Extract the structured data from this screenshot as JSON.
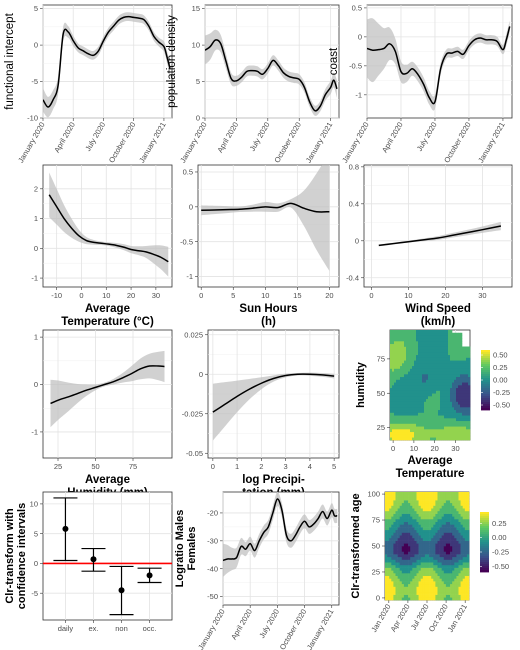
{
  "chart_data": [
    {
      "id": "p1",
      "type": "line",
      "ylabel": "functional intercept",
      "xlabel": "",
      "ylim": [
        -10,
        5.5
      ],
      "xlim": [
        0,
        12.8
      ],
      "yticks": [
        -10,
        -5,
        0,
        5
      ],
      "xticks": [
        {
          "v": 0,
          "t": "January 2020"
        },
        {
          "v": 3,
          "t": "April 2020"
        },
        {
          "v": 6,
          "t": "July 2020"
        },
        {
          "v": 9,
          "t": "October 2020"
        },
        {
          "v": 12,
          "t": "January 2021"
        }
      ],
      "x": [
        0,
        0.5,
        1,
        1.5,
        2,
        2.5,
        3,
        3.5,
        4,
        4.5,
        5,
        5.5,
        6,
        6.5,
        7,
        7.5,
        8,
        8.5,
        9,
        9.5,
        10,
        10.5,
        11,
        11.5,
        12,
        12.3,
        12.6
      ],
      "y": [
        -7.5,
        -8.5,
        -7.5,
        -5.5,
        1.5,
        1.8,
        0.6,
        -0.4,
        -0.8,
        -1.2,
        -1.4,
        -0.8,
        0.6,
        1.8,
        2.6,
        3.4,
        3.8,
        3.9,
        3.8,
        3.7,
        3.5,
        2.6,
        1.2,
        0.4,
        -0.2,
        -1.6,
        -3.2
      ],
      "band": [
        1.6,
        1.4,
        1.3,
        1.2,
        1.0,
        0.8,
        0.7,
        0.6,
        0.6,
        0.6,
        0.6,
        0.6,
        0.6,
        0.6,
        0.6,
        0.6,
        0.6,
        0.6,
        0.6,
        0.6,
        0.6,
        0.6,
        0.6,
        0.6,
        0.7,
        0.8,
        0.9
      ]
    },
    {
      "id": "p2",
      "type": "line",
      "ylabel": "population density",
      "xlabel": "",
      "ylim": [
        0,
        15.5
      ],
      "xlim": [
        0,
        12.8
      ],
      "yticks": [
        0,
        5,
        10,
        15
      ],
      "xticks": [
        {
          "v": 0,
          "t": "January 2020"
        },
        {
          "v": 3,
          "t": "April 2020"
        },
        {
          "v": 6,
          "t": "July 2020"
        },
        {
          "v": 9,
          "t": "October 2020"
        },
        {
          "v": 12,
          "t": "January 2021"
        }
      ],
      "x": [
        0,
        0.5,
        1,
        1.5,
        2,
        2.5,
        3,
        3.5,
        4,
        4.5,
        5,
        5.5,
        6,
        6.5,
        7,
        7.5,
        8,
        8.5,
        9,
        9.5,
        10,
        10.5,
        11,
        11.5,
        12,
        12.3,
        12.6
      ],
      "y": [
        9.3,
        9.8,
        10.7,
        10.2,
        7.8,
        5.4,
        5.1,
        5.6,
        6.4,
        6.5,
        6.4,
        6.0,
        6.8,
        7.9,
        7.2,
        6.2,
        5.7,
        5.5,
        5.3,
        4.2,
        2.2,
        1.0,
        1.6,
        3.2,
        4.2,
        5.2,
        4.0
      ],
      "band": [
        2.0,
        1.8,
        1.4,
        1.2,
        1.0,
        0.8,
        0.7,
        0.7,
        0.7,
        0.7,
        0.7,
        0.7,
        0.7,
        0.7,
        0.7,
        0.7,
        0.7,
        0.7,
        0.7,
        0.7,
        0.7,
        0.7,
        0.7,
        0.8,
        0.9,
        1.0,
        1.2
      ]
    },
    {
      "id": "p3",
      "type": "line",
      "ylabel": "coast",
      "xlabel": "",
      "ylim": [
        -1.4,
        0.55
      ],
      "xlim": [
        0,
        12.8
      ],
      "yticks": [
        -1.0,
        -0.5,
        0.0,
        0.5
      ],
      "xticks": [
        {
          "v": 0,
          "t": "January 2020"
        },
        {
          "v": 3,
          "t": "April 2020"
        },
        {
          "v": 6,
          "t": "July 2020"
        },
        {
          "v": 9,
          "t": "October 2020"
        },
        {
          "v": 12,
          "t": "January 2021"
        }
      ],
      "x": [
        0,
        0.5,
        1,
        1.5,
        2,
        2.5,
        3,
        3.5,
        4,
        4.5,
        5,
        5.5,
        6,
        6.5,
        7,
        7.5,
        8,
        8.5,
        9,
        9.5,
        10,
        10.5,
        11,
        11.5,
        12,
        12.3,
        12.6
      ],
      "y": [
        -0.2,
        -0.23,
        -0.22,
        -0.2,
        -0.12,
        -0.25,
        -0.6,
        -0.63,
        -0.55,
        -0.65,
        -0.82,
        -1.05,
        -1.12,
        -0.55,
        -0.3,
        -0.28,
        -0.25,
        -0.3,
        -0.15,
        -0.05,
        -0.02,
        -0.05,
        -0.05,
        -0.08,
        -0.22,
        -0.05,
        0.18
      ],
      "band": [
        0.5,
        0.55,
        0.45,
        0.35,
        0.28,
        0.22,
        0.18,
        0.15,
        0.12,
        0.12,
        0.12,
        0.12,
        0.12,
        0.1,
        0.08,
        0.08,
        0.08,
        0.08,
        0.08,
        0.08,
        0.08,
        0.08,
        0.08,
        0.08,
        0.08,
        0.1,
        0.1
      ]
    },
    {
      "id": "p4",
      "type": "line",
      "ylabel": "",
      "xlabel": "Average\nTemperature (°C)",
      "ylim": [
        -1.3,
        2.8
      ],
      "xlim": [
        -15.5,
        36.5
      ],
      "yticks": [
        -1,
        0,
        1,
        2
      ],
      "xticks": [
        {
          "v": -10,
          "t": "-10"
        },
        {
          "v": 0,
          "t": "0"
        },
        {
          "v": 10,
          "t": "10"
        },
        {
          "v": 20,
          "t": "20"
        },
        {
          "v": 30,
          "t": "30"
        }
      ],
      "x": [
        -13,
        -10,
        -7,
        -4,
        -1,
        2,
        5,
        8,
        11,
        14,
        17,
        20,
        23,
        26,
        29,
        32,
        35
      ],
      "y": [
        1.8,
        1.4,
        1.0,
        0.68,
        0.42,
        0.26,
        0.2,
        0.17,
        0.14,
        0.1,
        0.04,
        -0.04,
        -0.08,
        -0.12,
        -0.2,
        -0.3,
        -0.45
      ],
      "band": [
        0.75,
        0.6,
        0.45,
        0.32,
        0.2,
        0.12,
        0.08,
        0.06,
        0.06,
        0.08,
        0.1,
        0.12,
        0.15,
        0.2,
        0.3,
        0.4,
        0.5
      ]
    },
    {
      "id": "p5",
      "type": "line",
      "ylabel": "",
      "xlabel": "Sun Hours\n(h)",
      "ylim": [
        -1.15,
        0.6
      ],
      "xlim": [
        -0.5,
        21.5
      ],
      "yticks": [
        -1.0,
        -0.5,
        0.0,
        0.5
      ],
      "xticks": [
        {
          "v": 0,
          "t": "0"
        },
        {
          "v": 5,
          "t": "5"
        },
        {
          "v": 10,
          "t": "10"
        },
        {
          "v": 15,
          "t": "15"
        },
        {
          "v": 20,
          "t": "20"
        }
      ],
      "x": [
        0,
        2,
        4,
        6,
        8,
        10,
        12,
        14,
        16,
        18,
        20
      ],
      "y": [
        -0.05,
        -0.045,
        -0.04,
        -0.035,
        -0.02,
        0.0,
        -0.01,
        0.05,
        -0.02,
        -0.07,
        -0.07
      ],
      "band": [
        0.07,
        0.06,
        0.05,
        0.04,
        0.05,
        0.07,
        0.06,
        0.06,
        0.25,
        0.55,
        0.85
      ]
    },
    {
      "id": "p6",
      "type": "line",
      "ylabel": "",
      "xlabel": "Wind Speed\n(km/h)",
      "ylim": [
        -0.5,
        0.82
      ],
      "xlim": [
        -2,
        38
      ],
      "yticks": [
        -0.4,
        0.0,
        0.4,
        0.8
      ],
      "xticks": [
        {
          "v": 0,
          "t": "0"
        },
        {
          "v": 10,
          "t": "10"
        },
        {
          "v": 20,
          "t": "20"
        },
        {
          "v": 30,
          "t": "30"
        }
      ],
      "x": [
        2,
        6,
        10,
        14,
        18,
        22,
        26,
        30,
        35
      ],
      "y": [
        -0.05,
        -0.03,
        -0.01,
        0.01,
        0.03,
        0.06,
        0.09,
        0.12,
        0.16
      ],
      "band": [
        0.01,
        0.01,
        0.01,
        0.015,
        0.02,
        0.025,
        0.03,
        0.035,
        0.045
      ]
    },
    {
      "id": "p7",
      "type": "line",
      "ylabel": "",
      "xlabel": "Average\nHumidity (mm)",
      "ylim": [
        -1.55,
        1.15
      ],
      "xlim": [
        15,
        101
      ],
      "yticks": [
        -1,
        0,
        1
      ],
      "xticks": [
        {
          "v": 25,
          "t": "25"
        },
        {
          "v": 50,
          "t": "50"
        },
        {
          "v": 75,
          "t": "75"
        }
      ],
      "x": [
        20,
        26,
        32,
        38,
        44,
        50,
        56,
        62,
        68,
        74,
        80,
        86,
        92,
        96
      ],
      "y": [
        -0.4,
        -0.32,
        -0.26,
        -0.19,
        -0.12,
        -0.06,
        0.0,
        0.06,
        0.14,
        0.23,
        0.33,
        0.39,
        0.39,
        0.38
      ],
      "band": [
        0.5,
        0.4,
        0.3,
        0.2,
        0.12,
        0.06,
        0.04,
        0.06,
        0.1,
        0.16,
        0.22,
        0.26,
        0.3,
        0.33
      ]
    },
    {
      "id": "p8",
      "type": "line",
      "ylabel": "",
      "xlabel": "log Precipi-\ntation (mm)",
      "ylim": [
        -0.053,
        0.028
      ],
      "xlim": [
        -0.2,
        5.2
      ],
      "yticks": [
        -0.05,
        -0.025,
        0.0,
        0.025
      ],
      "xticks": [
        {
          "v": 0,
          "t": "0"
        },
        {
          "v": 1,
          "t": "1"
        },
        {
          "v": 2,
          "t": "2"
        },
        {
          "v": 3,
          "t": "3"
        },
        {
          "v": 4,
          "t": "4"
        },
        {
          "v": 5,
          "t": "5"
        }
      ],
      "x": [
        0,
        0.5,
        1,
        1.5,
        2,
        2.5,
        3,
        3.5,
        4,
        4.5,
        5
      ],
      "y": [
        -0.024,
        -0.019,
        -0.014,
        -0.0095,
        -0.0057,
        -0.0027,
        -0.0008,
        0.0,
        0.0,
        -0.0004,
        -0.0012
      ],
      "band": [
        0.018,
        0.014,
        0.01,
        0.0065,
        0.0038,
        0.002,
        0.0012,
        0.0008,
        0.001,
        0.0012,
        0.0015
      ]
    },
    {
      "id": "p9",
      "type": "heatmap",
      "ylabel": "humidity",
      "xlabel": "Average\nTemperature",
      "xlim": [
        -1.5,
        37
      ],
      "ylim": [
        16,
        96
      ],
      "yticks": [
        25,
        50,
        75
      ],
      "xticks": [
        {
          "v": 0,
          "t": "0"
        },
        {
          "v": 10,
          "t": "10"
        },
        {
          "v": 20,
          "t": "20"
        },
        {
          "v": 30,
          "t": "30"
        }
      ],
      "zlim": [
        -0.6,
        0.6
      ],
      "legend_ticks": [
        "0.50",
        "0.25",
        "0.00",
        "-0.25",
        "-0.50"
      ],
      "legend_values": [
        0.5,
        0.25,
        0,
        -0.25,
        -0.5
      ]
    },
    {
      "id": "p10",
      "type": "scatter",
      "ylabel": "Clr-transform with\nconfidence intervals",
      "xlabel": "",
      "categories": [
        "daily",
        "ex.",
        "non",
        "occ."
      ],
      "values": [
        5.8,
        0.7,
        -4.5,
        -2.0
      ],
      "lower": [
        0.5,
        -1.3,
        -8.6,
        -3.2
      ],
      "upper": [
        11.0,
        2.5,
        -0.5,
        -0.8
      ],
      "ylim": [
        -9.5,
        12
      ],
      "yticks": [
        -5,
        0,
        5,
        10
      ],
      "reference_line": 0,
      "reference_color": "#ff0000"
    },
    {
      "id": "p11",
      "type": "line",
      "ylabel": "Logratio Males\nFemales",
      "xlabel": "",
      "ylim": [
        -53,
        -12.5
      ],
      "xlim": [
        0,
        12.8
      ],
      "yticks": [
        -50,
        -40,
        -30,
        -20
      ],
      "xticks": [
        {
          "v": 0,
          "t": "January 2020"
        },
        {
          "v": 3,
          "t": "April 2020"
        },
        {
          "v": 6,
          "t": "July 2020"
        },
        {
          "v": 9,
          "t": "October 2020"
        },
        {
          "v": 12,
          "t": "January 2021"
        }
      ],
      "x": [
        0,
        0.5,
        1,
        1.5,
        2,
        2.5,
        3,
        3.5,
        4,
        4.5,
        5,
        5.5,
        6,
        6.5,
        7,
        7.5,
        8,
        8.5,
        9,
        9.5,
        10,
        10.5,
        11,
        11.5,
        12,
        12.3,
        12.6
      ],
      "y": [
        -37,
        -36.5,
        -36.5,
        -36,
        -32,
        -33,
        -31,
        -33.5,
        -30,
        -27,
        -25,
        -20,
        -15,
        -19,
        -28,
        -30,
        -28,
        -25,
        -23,
        -25,
        -24,
        -22,
        -19.5,
        -22,
        -19,
        -21,
        -21
      ],
      "band": [
        6,
        5,
        4,
        3.5,
        3,
        2.5,
        2.5,
        2.5,
        2.5,
        2.5,
        2.5,
        2.5,
        2.5,
        2.5,
        2.5,
        2.5,
        2.5,
        2.5,
        2.5,
        2.5,
        2.5,
        2.5,
        2.5,
        2.5,
        2.5,
        2.5,
        2.5
      ]
    },
    {
      "id": "p12",
      "type": "heatmap",
      "ylabel": "Clr-transformed age",
      "xlabel": "",
      "xlim": [
        -0.6,
        12.6
      ],
      "ylim": [
        -2,
        102
      ],
      "yticks": [
        0,
        25,
        50,
        75,
        100
      ],
      "xticks": [
        {
          "v": 0,
          "t": "Jan 2020"
        },
        {
          "v": 3,
          "t": "Apr 2020"
        },
        {
          "v": 6,
          "t": "Jul 2020"
        },
        {
          "v": 9,
          "t": "Oct 2020"
        },
        {
          "v": 12,
          "t": "Jan 2021"
        }
      ],
      "zlim": [
        -0.6,
        0.45
      ],
      "legend_ticks": [
        "0.25",
        "0.00",
        "-0.25",
        "-0.50"
      ],
      "legend_values": [
        0.25,
        0,
        -0.25,
        -0.5
      ]
    }
  ]
}
